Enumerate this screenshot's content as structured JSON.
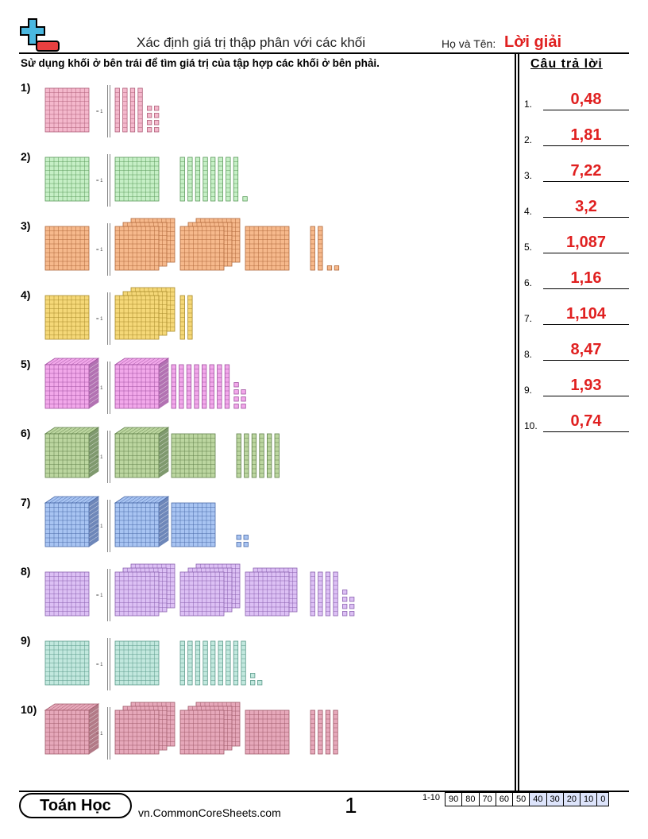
{
  "header": {
    "title": "Xác định giá trị thập phân với các khối",
    "name_label": "Họ và Tên:",
    "name_value": "Lời giải"
  },
  "instructions": "Sử dụng khối ở bên trái để tìm giá trị của tập hợp các khối ở bên phải.",
  "equals_label": "= 1",
  "answer_heading": "Câu trả lời",
  "problems": [
    {
      "label": "1)",
      "unit": "flat",
      "color": "#f4b8cc",
      "line": "#b0607a",
      "cubes": 0,
      "flats": 0,
      "rods": 4,
      "units": 8
    },
    {
      "label": "2)",
      "unit": "flat",
      "color": "#c6efc6",
      "line": "#5a9a5a",
      "cubes": 0,
      "flats": 1,
      "rods": 8,
      "units": 1
    },
    {
      "label": "3)",
      "unit": "flat",
      "color": "#f6b98c",
      "line": "#b0683a",
      "cubes": 0,
      "flats": 7,
      "rods": 2,
      "units": 2
    },
    {
      "label": "4)",
      "unit": "flat",
      "color": "#f5d878",
      "line": "#a88a2a",
      "cubes": 0,
      "flats": 3,
      "rods": 2,
      "units": 0
    },
    {
      "label": "5)",
      "unit": "cube",
      "color": "#f2a8ea",
      "line": "#a050a0",
      "cubes": 1,
      "flats": 0,
      "rods": 8,
      "units": 7
    },
    {
      "label": "6)",
      "unit": "cube",
      "color": "#bcd6a0",
      "line": "#60804a",
      "cubes": 1,
      "flats": 1,
      "rods": 6,
      "units": 0
    },
    {
      "label": "7)",
      "unit": "cube",
      "color": "#a8c4f2",
      "line": "#4a6aa8",
      "cubes": 1,
      "flats": 1,
      "rods": 0,
      "units": 4
    },
    {
      "label": "8)",
      "unit": "flat",
      "color": "#dcc0f4",
      "line": "#8a60b0",
      "cubes": 0,
      "flats": 8,
      "rods": 4,
      "units": 7
    },
    {
      "label": "9)",
      "unit": "flat",
      "color": "#c2e8de",
      "line": "#5a9a8a",
      "cubes": 0,
      "flats": 1,
      "rods": 9,
      "units": 3
    },
    {
      "label": "10)",
      "unit": "cube",
      "color": "#e6a8ba",
      "line": "#a05a6a",
      "cubes": 0,
      "flats": 7,
      "rods": 4,
      "units": 0
    }
  ],
  "answers": [
    {
      "num": "1.",
      "value": "0,48"
    },
    {
      "num": "2.",
      "value": "1,81"
    },
    {
      "num": "3.",
      "value": "7,22"
    },
    {
      "num": "4.",
      "value": "3,2"
    },
    {
      "num": "5.",
      "value": "1,087"
    },
    {
      "num": "6.",
      "value": "1,16"
    },
    {
      "num": "7.",
      "value": "1,104"
    },
    {
      "num": "8.",
      "value": "8,47"
    },
    {
      "num": "9.",
      "value": "1,93"
    },
    {
      "num": "10.",
      "value": "0,74"
    }
  ],
  "footer": {
    "brand": "Toán Học",
    "site": "vn.CommonCoreSheets.com",
    "page": "1",
    "score_label": "1-10",
    "scores": [
      "90",
      "80",
      "70",
      "60",
      "50",
      "40",
      "30",
      "20",
      "10",
      "0"
    ]
  },
  "colors": {
    "answer": "#e02020",
    "logo_blue": "#4ab8e0",
    "logo_red": "#e84040",
    "score_highlight": "#dde4fb"
  }
}
